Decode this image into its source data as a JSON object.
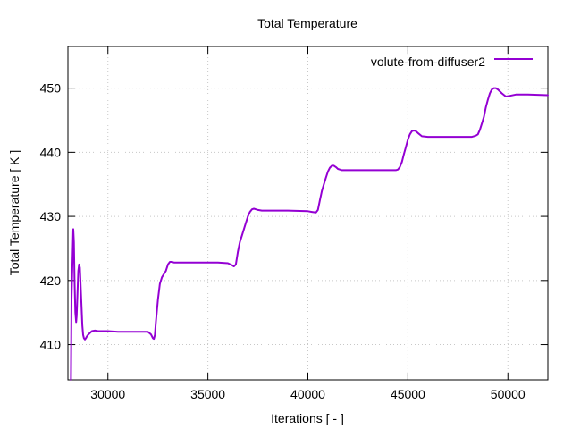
{
  "chart_data": {
    "type": "line",
    "title": "Total Temperature",
    "xlabel": "Iterations [ - ]",
    "ylabel": "Total Temperature [ K ]",
    "xlim": [
      28000,
      52000
    ],
    "ylim": [
      404.5,
      456.5
    ],
    "xticks": [
      30000,
      35000,
      40000,
      45000,
      50000
    ],
    "yticks": [
      410,
      420,
      430,
      440,
      450
    ],
    "grid": true,
    "legend_position": "top-right",
    "series": [
      {
        "name": "volute-from-diffuser2",
        "color": "#9400d3",
        "x": [
          28150,
          28180,
          28230,
          28270,
          28300,
          28330,
          28370,
          28410,
          28440,
          28480,
          28520,
          28560,
          28600,
          28640,
          28680,
          28720,
          28760,
          28800,
          28850,
          28900,
          28950,
          29000,
          29100,
          29200,
          29350,
          29500,
          29700,
          30000,
          30500,
          31000,
          31500,
          32000,
          32150,
          32250,
          32300,
          32350,
          32400,
          32500,
          32600,
          32700,
          32800,
          32900,
          33000,
          33100,
          33200,
          33300,
          33400,
          33600,
          34000,
          34500,
          35000,
          35500,
          36000,
          36200,
          36300,
          36400,
          36500,
          36600,
          36700,
          36800,
          36900,
          37000,
          37100,
          37200,
          37300,
          37400,
          37500,
          37700,
          38000,
          39000,
          40000,
          40200,
          40400,
          40500,
          40600,
          40700,
          40800,
          40900,
          41000,
          41100,
          41200,
          41300,
          41400,
          41500,
          41700,
          42000,
          43000,
          44000,
          44300,
          44400,
          44500,
          44600,
          44700,
          44800,
          44900,
          45000,
          45100,
          45200,
          45300,
          45400,
          45500,
          45700,
          46000,
          47000,
          48000,
          48200,
          48300,
          48400,
          48500,
          48600,
          48700,
          48800,
          48900,
          49000,
          49100,
          49200,
          49300,
          49400,
          49500,
          49700,
          49900,
          50100,
          50400,
          51000,
          52000
        ],
        "y": [
          404.5,
          417,
          423,
          428,
          426,
          420,
          415,
          413.5,
          414.5,
          418,
          421.5,
          422.5,
          422,
          419,
          416,
          413,
          411.5,
          411,
          410.8,
          411,
          411.3,
          411.5,
          411.8,
          412.1,
          412.2,
          412.1,
          412.1,
          412.1,
          412.0,
          412.0,
          412.0,
          412.0,
          411.6,
          411.0,
          410.9,
          411.5,
          413.5,
          417,
          419.5,
          420.5,
          421.0,
          421.5,
          422.5,
          422.9,
          422.9,
          422.8,
          422.8,
          422.8,
          422.8,
          422.8,
          422.8,
          422.8,
          422.7,
          422.4,
          422.2,
          422.5,
          424.5,
          426,
          427,
          428,
          429,
          430,
          430.7,
          431.1,
          431.2,
          431.1,
          431.0,
          430.9,
          430.9,
          430.9,
          430.8,
          430.7,
          430.6,
          431,
          432.5,
          434,
          435,
          436,
          437,
          437.6,
          437.9,
          437.9,
          437.7,
          437.4,
          437.2,
          437.2,
          437.2,
          437.2,
          437.2,
          437.2,
          437.3,
          437.7,
          438.5,
          439.7,
          440.8,
          442,
          442.8,
          443.3,
          443.4,
          443.3,
          443.0,
          442.5,
          442.4,
          442.4,
          442.4,
          442.4,
          442.5,
          442.6,
          442.8,
          443.5,
          444.5,
          445.5,
          447,
          448.2,
          449.2,
          449.8,
          450.0,
          450.0,
          449.8,
          449.2,
          448.7,
          448.8,
          449.0,
          449.0,
          448.9
        ]
      }
    ]
  }
}
